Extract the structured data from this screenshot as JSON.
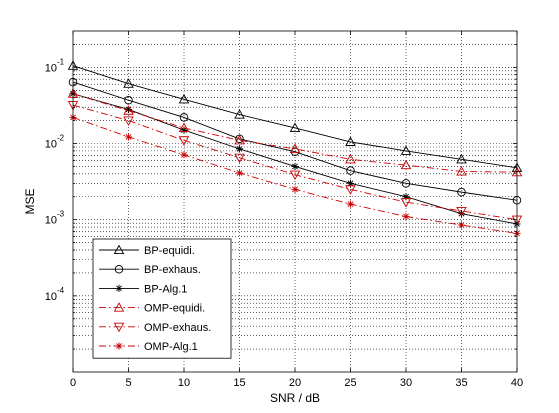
{
  "chart_data": {
    "type": "line",
    "title": "",
    "xlabel": "SNR / dB",
    "ylabel": "MSE",
    "xlim": [
      0,
      40
    ],
    "ylim": [
      1e-05,
      0.3
    ],
    "yscale": "log",
    "grid": true,
    "legend_position": "bottom-left",
    "x": [
      0,
      5,
      10,
      15,
      20,
      25,
      30,
      35,
      40
    ],
    "x_ticks": [
      "0",
      "5",
      "10",
      "15",
      "20",
      "25",
      "30",
      "35",
      "40"
    ],
    "y_ticks": [
      {
        "value": 0.1,
        "base": "10",
        "exp": "-1"
      },
      {
        "value": 0.01,
        "base": "10",
        "exp": "-2"
      },
      {
        "value": 0.001,
        "base": "10",
        "exp": "-3"
      },
      {
        "value": 0.0001,
        "base": "10",
        "exp": "-4"
      }
    ],
    "series": [
      {
        "name": "BP-equidi.",
        "color": "#000000",
        "dash": "solid",
        "marker": "triangle-up",
        "values": [
          0.105,
          0.061,
          0.038,
          0.024,
          0.016,
          0.0105,
          0.008,
          0.0062,
          0.0048
        ]
      },
      {
        "name": "BP-exhaus.",
        "color": "#000000",
        "dash": "solid",
        "marker": "circle",
        "values": [
          0.064,
          0.037,
          0.022,
          0.0115,
          0.0078,
          0.0044,
          0.003,
          0.0023,
          0.0018
        ]
      },
      {
        "name": "BP-Alg.1",
        "color": "#000000",
        "dash": "solid",
        "marker": "asterisk",
        "values": [
          0.045,
          0.028,
          0.015,
          0.0085,
          0.005,
          0.003,
          0.002,
          0.0012,
          0.00088
        ]
      },
      {
        "name": "OMP-equidi.",
        "color": "#cc0000",
        "dash": "dashdot",
        "marker": "triangle-up",
        "values": [
          0.045,
          0.027,
          0.016,
          0.011,
          0.0085,
          0.0062,
          0.0052,
          0.0043,
          0.0042
        ]
      },
      {
        "name": "OMP-exhaus.",
        "color": "#cc0000",
        "dash": "dashdot",
        "marker": "triangle-down",
        "values": [
          0.032,
          0.02,
          0.011,
          0.0065,
          0.0039,
          0.0025,
          0.0017,
          0.0013,
          0.001
        ]
      },
      {
        "name": "OMP-Alg.1",
        "color": "#cc0000",
        "dash": "dashdot",
        "marker": "asterisk",
        "values": [
          0.022,
          0.0122,
          0.0071,
          0.0041,
          0.0025,
          0.0016,
          0.0011,
          0.00085,
          0.00066
        ]
      }
    ]
  }
}
